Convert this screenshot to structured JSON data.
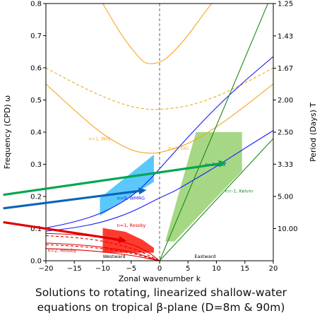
{
  "chart_data": {
    "type": "line",
    "title": "",
    "xlabel": "Zonal wavenumber  k",
    "ylabel": "Frequency (CPD)  ω",
    "y2label": "Period (Days)  T",
    "xlim": [
      -20,
      20
    ],
    "ylim": [
      0,
      0.8
    ],
    "xticks": [
      -20,
      -15,
      -10,
      -5,
      0,
      5,
      10,
      15,
      20
    ],
    "xtick_labels": [
      "−20",
      "−15",
      "−10",
      "−5",
      "0",
      "5",
      "10",
      "15",
      "20"
    ],
    "yticks": [
      0.0,
      0.1,
      0.2,
      0.3,
      0.4,
      0.5,
      0.6,
      0.7,
      0.8
    ],
    "ytick_labels": [
      "0.0",
      "0.1",
      "0.2",
      "0.3",
      "0.4",
      "0.5",
      "0.6",
      "0.7",
      "0.8"
    ],
    "period_ticks": [
      {
        "label": "1.25",
        "freq": 0.8
      },
      {
        "label": "1.43",
        "freq": 0.6993
      },
      {
        "label": "1.67",
        "freq": 0.5988
      },
      {
        "label": "2.00",
        "freq": 0.5
      },
      {
        "label": "2.50",
        "freq": 0.4
      },
      {
        "label": "3.33",
        "freq": 0.3003
      },
      {
        "label": "5.00",
        "freq": 0.2
      },
      {
        "label": "10.00",
        "freq": 0.1
      }
    ],
    "grid": false,
    "zero_line_style": "dashed",
    "region_labels": {
      "westward": "Westward",
      "eastward": "Eastward"
    },
    "curve_labels": [
      {
        "text": "n=1, WIG",
        "x": -12.5,
        "y": 0.375,
        "color": "#f5a623"
      },
      {
        "text": "n=1, EIG",
        "x": 1.5,
        "y": 0.345,
        "color": "#f5a623"
      },
      {
        "text": "n=0, WMRG",
        "x": -7.5,
        "y": 0.19,
        "color": "#1a1aff"
      },
      {
        "text": "n=1, Rossby",
        "x": -7.5,
        "y": 0.105,
        "color": "#e00000"
      },
      {
        "text": "n=2, Rossby",
        "x": -19.7,
        "y": 0.028,
        "color": "#e00000"
      },
      {
        "text": "n=0, EIG",
        "x": 8,
        "y": 0.295,
        "color": "#1a1aff"
      },
      {
        "text": "n=-1, Kelvin",
        "x": 11.5,
        "y": 0.212,
        "color": "#1a8a1a"
      }
    ],
    "series": [
      {
        "color": "#f5a623",
        "dash": false,
        "x": [
          -20,
          -15,
          -10,
          -5,
          -2,
          0,
          5,
          10,
          15,
          20
        ],
        "y": [
          0.55,
          0.468,
          0.392,
          0.342,
          0.334,
          0.335,
          0.362,
          0.415,
          0.48,
          0.55
        ]
      },
      {
        "color": "#f5a623",
        "dash": true,
        "x": [
          -20,
          -15,
          -10,
          -5,
          -2,
          0,
          5,
          10,
          15,
          20
        ],
        "y": [
          0.6,
          0.552,
          0.51,
          0.478,
          0.471,
          0.47,
          0.48,
          0.51,
          0.552,
          0.6
        ]
      },
      {
        "color": "#f5a623",
        "dash": false,
        "x": [
          -10,
          -7,
          -5,
          -3,
          -2,
          0,
          2,
          5,
          7,
          10,
          12
        ],
        "y": [
          0.8,
          0.71,
          0.661,
          0.62,
          0.612,
          0.615,
          0.64,
          0.7,
          0.75,
          0.82,
          0.86
        ]
      },
      {
        "color": "#1a1aff",
        "dash": false,
        "x": [
          -20,
          -15,
          -10,
          -5,
          -2,
          0,
          5,
          10,
          15,
          20
        ],
        "y": [
          0.102,
          0.12,
          0.148,
          0.198,
          0.247,
          0.286,
          0.385,
          0.478,
          0.56,
          0.635
        ]
      },
      {
        "color": "#1a1aff",
        "dash": false,
        "x": [
          -20,
          -15,
          -10,
          -5,
          0,
          2.5,
          5,
          10,
          15,
          20
        ],
        "y": [
          0.092,
          0.102,
          0.12,
          0.15,
          0.196,
          0.215,
          0.241,
          0.293,
          0.35,
          0.405
        ]
      },
      {
        "color": "#1a8a1a",
        "dash": false,
        "x": [
          0,
          20
        ],
        "y": [
          0,
          0.84
        ]
      },
      {
        "color": "#1a8a1a",
        "dash": false,
        "x": [
          0,
          20
        ],
        "y": [
          0,
          0.38
        ]
      },
      {
        "color": "#e00000",
        "dash": false,
        "x": [
          -20,
          -15,
          -10,
          -5,
          -2,
          0
        ],
        "y": [
          0.085,
          0.082,
          0.073,
          0.053,
          0.028,
          0.0
        ]
      },
      {
        "color": "#e00000",
        "dash": true,
        "x": [
          -20,
          -15,
          -10,
          -5,
          -2,
          0
        ],
        "y": [
          0.078,
          0.073,
          0.062,
          0.04,
          0.018,
          0.0
        ]
      },
      {
        "color": "#e00000",
        "dash": false,
        "x": [
          -20,
          -15,
          -10,
          -5,
          -2,
          0
        ],
        "y": [
          0.055,
          0.051,
          0.043,
          0.028,
          0.012,
          0.0
        ]
      },
      {
        "color": "#e00000",
        "dash": true,
        "x": [
          -20,
          -15,
          -10,
          -5,
          -2,
          0
        ],
        "y": [
          0.05,
          0.046,
          0.038,
          0.024,
          0.01,
          0.0
        ]
      },
      {
        "color": "#e00000",
        "dash": false,
        "x": [
          -20,
          -15,
          -10,
          -5,
          -2,
          0
        ],
        "y": [
          0.038,
          0.035,
          0.028,
          0.017,
          0.007,
          0.0
        ]
      }
    ],
    "shaded_regions": [
      {
        "color": "#5ac8fa",
        "points": [
          [
            -10.5,
            0.14
          ],
          [
            -1.0,
            0.245
          ],
          [
            -1.0,
            0.33
          ],
          [
            -10.5,
            0.195
          ]
        ]
      },
      {
        "color": "#ff3b30",
        "points": [
          [
            -10.0,
            0.025
          ],
          [
            -1.0,
            0.025
          ],
          [
            -1.0,
            0.04
          ],
          [
            -3.0,
            0.065
          ],
          [
            -6.0,
            0.09
          ],
          [
            -10.0,
            0.102
          ]
        ]
      },
      {
        "color": "#a6d784",
        "points": [
          [
            1.0,
            0.06
          ],
          [
            2.6,
            0.06
          ],
          [
            14.5,
            0.28
          ],
          [
            14.5,
            0.4
          ],
          [
            6.4,
            0.4
          ]
        ]
      }
    ],
    "arrows": [
      {
        "color": "#00a651",
        "from": [
          -27.5,
          0.205
        ],
        "to": [
          11.8,
          0.305
        ]
      },
      {
        "color": "#0b63b8",
        "from": [
          -27.5,
          0.163
        ],
        "to": [
          -2.3,
          0.22
        ]
      },
      {
        "color": "#e00000",
        "from": [
          -27.5,
          0.12
        ],
        "to": [
          -5.8,
          0.062
        ]
      }
    ]
  },
  "caption": {
    "line1": "Solutions to rotating, linearized shallow-water",
    "line2": "equations on tropical β-plane (D=8m & 90m)"
  }
}
